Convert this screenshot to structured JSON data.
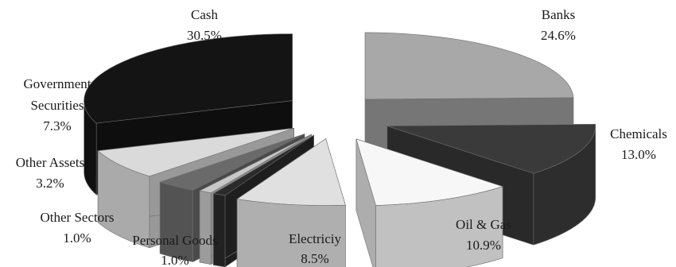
{
  "chart_data": {
    "type": "pie",
    "style": "3d-exploded",
    "title": "",
    "slices": [
      {
        "name": "Banks",
        "value_label": "24.6%",
        "value": 24.6,
        "color": "#a8a8a8"
      },
      {
        "name": "Chemicals",
        "value_label": "13.0%",
        "value": 13.0,
        "color": "#3a3a3a"
      },
      {
        "name": "Oil & Gas",
        "value_label": "10.9%",
        "value": 10.9,
        "color": "#f7f7f7"
      },
      {
        "name": "Electriciy",
        "value_label": "8.5%",
        "value": 8.5,
        "color": "#e0e0e0"
      },
      {
        "name": "Personal Goods",
        "value_label": "1.0%",
        "value": 1.0,
        "color": "#2b2b2b"
      },
      {
        "name": "Other Sectors",
        "value_label": "1.0%",
        "value": 1.0,
        "color": "#c8c8c8"
      },
      {
        "name": "Other Assets",
        "value_label": "3.2%",
        "value": 3.2,
        "color": "#6a6a6a"
      },
      {
        "name": "Government Securities",
        "name_lines": [
          "Government",
          "Securities"
        ],
        "value_label": "7.3%",
        "value": 7.3,
        "color": "#dadada"
      },
      {
        "name": "Cash",
        "value_label": "30.5%",
        "value": 30.5,
        "color": "#141414"
      }
    ]
  }
}
